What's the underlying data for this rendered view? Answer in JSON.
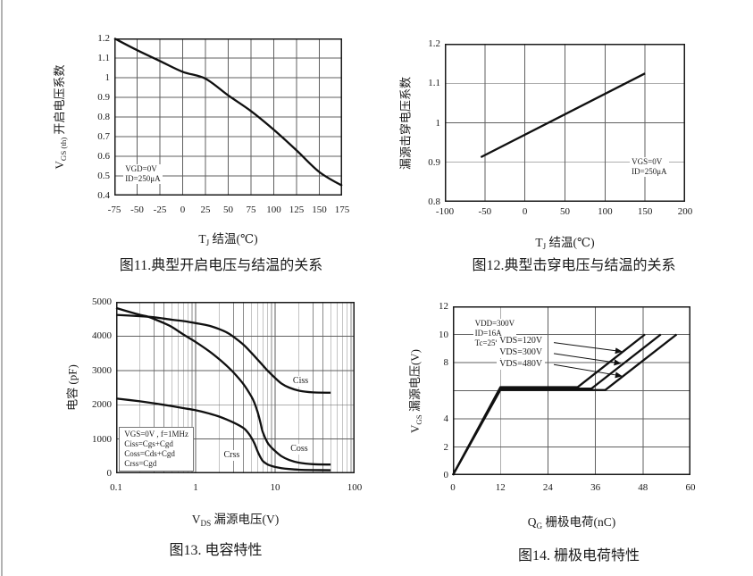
{
  "page": {
    "edge_line_color": "#b3b3b3",
    "background": "#ffffff",
    "ink_color": "#1a1a1a"
  },
  "chart_data": [
    {
      "name": "fig11",
      "type": "line",
      "caption": "图11.典型开启电压与结温的关系",
      "xlabel_parts": [
        {
          "t": "T"
        },
        {
          "t": "J",
          "sub": true
        },
        {
          "t": " 结温(℃)"
        }
      ],
      "ylabel_parts": [
        {
          "t": "V"
        },
        {
          "t": "GS (th)",
          "sub": true
        },
        {
          "t": " 开启电压系数"
        }
      ],
      "x_scale": "linear",
      "x_range": [
        -75,
        175
      ],
      "y_range": [
        0.4,
        1.2
      ],
      "grid": true,
      "x_ticks": [
        {
          "v": -75,
          "label": "-75"
        },
        {
          "v": -50,
          "label": "-50"
        },
        {
          "v": -25,
          "label": "-25"
        },
        {
          "v": 0,
          "label": "0"
        },
        {
          "v": 25,
          "label": "25"
        },
        {
          "v": 50,
          "label": "50"
        },
        {
          "v": 75,
          "label": "75"
        },
        {
          "v": 100,
          "label": "100"
        },
        {
          "v": 125,
          "label": "125"
        },
        {
          "v": 150,
          "label": "150"
        },
        {
          "v": 175,
          "label": "175"
        }
      ],
      "y_ticks": [
        {
          "v": 0.4,
          "label": "0.4"
        },
        {
          "v": 0.5,
          "label": "0.5"
        },
        {
          "v": 0.6,
          "label": "0.6"
        },
        {
          "v": 0.7,
          "label": "0.7"
        },
        {
          "v": 0.8,
          "label": "0.8"
        },
        {
          "v": 0.9,
          "label": "0.9"
        },
        {
          "v": 1,
          "label": "1"
        },
        {
          "v": 1.1,
          "label": "1.1"
        },
        {
          "v": 1.2,
          "label": "1.2"
        }
      ],
      "series": [
        {
          "name": "vgs-th-coefficient-curve",
          "smooth": true,
          "points": [
            [
              -75,
              1.2
            ],
            [
              -50,
              1.14
            ],
            [
              -25,
              1.085
            ],
            [
              0,
              1.03
            ],
            [
              25,
              0.995
            ],
            [
              50,
              0.91
            ],
            [
              75,
              0.83
            ],
            [
              100,
              0.735
            ],
            [
              125,
              0.63
            ],
            [
              150,
              0.52
            ],
            [
              175,
              0.45
            ]
          ]
        }
      ],
      "annotations": [
        {
          "lines": [
            "VGD=0V",
            "ID=250μA"
          ],
          "fx": 0.04,
          "fy": 0.8,
          "boxed": false
        }
      ],
      "series_labels": [],
      "arrows": []
    },
    {
      "name": "fig12",
      "type": "line",
      "caption": "图12.典型击穿电压与结温的关系",
      "xlabel_parts": [
        {
          "t": "T"
        },
        {
          "t": "J",
          "sub": true
        },
        {
          "t": " 结温(℃)"
        }
      ],
      "ylabel_parts": [
        {
          "t": "漏源击穿电压系数"
        }
      ],
      "x_scale": "linear",
      "x_range": [
        -100,
        200
      ],
      "y_range": [
        0.8,
        1.2
      ],
      "grid": true,
      "x_ticks": [
        {
          "v": -100,
          "label": "-100"
        },
        {
          "v": -50,
          "label": "-50"
        },
        {
          "v": 0,
          "label": "0"
        },
        {
          "v": 50,
          "label": "50"
        },
        {
          "v": 100,
          "label": "100"
        },
        {
          "v": 150,
          "label": "150"
        },
        {
          "v": 200,
          "label": "200"
        }
      ],
      "y_ticks": [
        {
          "v": 0.8,
          "label": "0.8"
        },
        {
          "v": 0.9,
          "label": "0.9"
        },
        {
          "v": 1,
          "label": "1"
        },
        {
          "v": 1.1,
          "label": "1.1"
        },
        {
          "v": 1.2,
          "label": "1.2"
        }
      ],
      "series": [
        {
          "name": "bvdss-coefficient-line",
          "smooth": false,
          "points": [
            [
              -55,
              0.913
            ],
            [
              150,
              1.125
            ]
          ]
        }
      ],
      "annotations": [
        {
          "lines": [
            "VGS=0V",
            "ID=250μA"
          ],
          "fx": 0.77,
          "fy": 0.72,
          "boxed": false
        }
      ],
      "series_labels": [],
      "arrows": []
    },
    {
      "name": "fig13",
      "type": "line",
      "caption": "图13. 电容特性",
      "xlabel_parts": [
        {
          "t": "V"
        },
        {
          "t": "DS",
          "sub": true
        },
        {
          "t": " 漏源电压(V)"
        }
      ],
      "ylabel_parts": [
        {
          "t": "电容 (pF)"
        }
      ],
      "x_scale": "log",
      "x_range": [
        0.1,
        100
      ],
      "y_range": [
        0,
        5000
      ],
      "grid": true,
      "x_ticks": [
        {
          "v": 0.1,
          "label": "0.1"
        },
        {
          "v": 1,
          "label": "1"
        },
        {
          "v": 10,
          "label": "10"
        },
        {
          "v": 100,
          "label": "100"
        }
      ],
      "y_ticks": [
        {
          "v": 0,
          "label": "0"
        },
        {
          "v": 1000,
          "label": "1000"
        },
        {
          "v": 2000,
          "label": "2000"
        },
        {
          "v": 3000,
          "label": "3000"
        },
        {
          "v": 4000,
          "label": "4000"
        },
        {
          "v": 5000,
          "label": "5000"
        }
      ],
      "series": [
        {
          "name": "ciss-curve",
          "smooth": true,
          "points": [
            [
              0.1,
              4620
            ],
            [
              0.2,
              4580
            ],
            [
              0.3,
              4550
            ],
            [
              0.5,
              4480
            ],
            [
              0.7,
              4440
            ],
            [
              1,
              4380
            ],
            [
              1.5,
              4300
            ],
            [
              2,
              4200
            ],
            [
              2.5,
              4100
            ],
            [
              3,
              3980
            ],
            [
              4,
              3750
            ],
            [
              5,
              3520
            ],
            [
              6,
              3320
            ],
            [
              7,
              3150
            ],
            [
              8,
              3000
            ],
            [
              10,
              2780
            ],
            [
              12,
              2620
            ],
            [
              15,
              2500
            ],
            [
              20,
              2410
            ],
            [
              30,
              2360
            ],
            [
              50,
              2350
            ]
          ]
        },
        {
          "name": "coss-curve",
          "smooth": true,
          "points": [
            [
              0.1,
              4820
            ],
            [
              0.15,
              4700
            ],
            [
              0.2,
              4620
            ],
            [
              0.25,
              4570
            ],
            [
              0.3,
              4500
            ],
            [
              0.4,
              4380
            ],
            [
              0.5,
              4270
            ],
            [
              0.7,
              4050
            ],
            [
              1,
              3830
            ],
            [
              1.5,
              3550
            ],
            [
              2,
              3320
            ],
            [
              2.5,
              3120
            ],
            [
              3,
              2940
            ],
            [
              4,
              2600
            ],
            [
              5,
              2250
            ],
            [
              5.5,
              2050
            ],
            [
              6,
              1800
            ],
            [
              6.5,
              1500
            ],
            [
              7,
              1200
            ],
            [
              8,
              900
            ],
            [
              9,
              750
            ],
            [
              10,
              650
            ],
            [
              12,
              500
            ],
            [
              15,
              390
            ],
            [
              20,
              310
            ],
            [
              30,
              265
            ],
            [
              50,
              255
            ]
          ]
        },
        {
          "name": "crss-curve",
          "smooth": true,
          "points": [
            [
              0.1,
              2180
            ],
            [
              0.2,
              2100
            ],
            [
              0.3,
              2040
            ],
            [
              0.5,
              1960
            ],
            [
              0.7,
              1900
            ],
            [
              1,
              1840
            ],
            [
              1.5,
              1740
            ],
            [
              2,
              1650
            ],
            [
              3,
              1480
            ],
            [
              4,
              1320
            ],
            [
              4.5,
              1200
            ],
            [
              5,
              1050
            ],
            [
              5.5,
              870
            ],
            [
              6,
              650
            ],
            [
              6.5,
              480
            ],
            [
              7,
              360
            ],
            [
              8,
              260
            ],
            [
              9,
              215
            ],
            [
              10,
              185
            ],
            [
              12,
              150
            ],
            [
              15,
              125
            ],
            [
              20,
              105
            ],
            [
              30,
              95
            ],
            [
              50,
              90
            ]
          ]
        }
      ],
      "annotations": [
        {
          "lines": [
            "VGS=0V , f=1MHz",
            "Ciss=Cgs+Cgd",
            "Coss=Cds+Cgd",
            "Crss=Cgd"
          ],
          "fx": 0.012,
          "fy": 0.73,
          "boxed": true
        }
      ],
      "series_labels": [
        {
          "text": "Ciss",
          "fx": 0.73,
          "fy": 0.43
        },
        {
          "text": "Coss",
          "fx": 0.72,
          "fy": 0.83
        },
        {
          "text": "Crss",
          "fx": 0.44,
          "fy": 0.865
        }
      ],
      "arrows": []
    },
    {
      "name": "fig14",
      "type": "line",
      "caption": "图14. 栅极电荷特性",
      "xlabel_parts": [
        {
          "t": "Q"
        },
        {
          "t": "G",
          "sub": true
        },
        {
          "t": " 栅极电荷(nC)"
        }
      ],
      "ylabel_parts": [
        {
          "t": "V"
        },
        {
          "t": "GS",
          "sub": true
        },
        {
          "t": " 漏源电压(V)"
        }
      ],
      "x_scale": "linear",
      "x_range": [
        0,
        60
      ],
      "y_range": [
        0,
        12
      ],
      "grid": true,
      "x_ticks": [
        {
          "v": 0,
          "label": "0"
        },
        {
          "v": 12,
          "label": "12"
        },
        {
          "v": 24,
          "label": "24"
        },
        {
          "v": 36,
          "label": "36"
        },
        {
          "v": 48,
          "label": "48"
        },
        {
          "v": 60,
          "label": "60"
        }
      ],
      "y_ticks": [
        {
          "v": 0,
          "label": "0"
        },
        {
          "v": 2,
          "label": "2"
        },
        {
          "v": 4,
          "label": "4"
        },
        {
          "v": 6,
          "label": ""
        },
        {
          "v": 8,
          "label": "8"
        },
        {
          "v": 10,
          "label": "10"
        },
        {
          "v": 12,
          "label": "12"
        }
      ],
      "series": [
        {
          "name": "vds-120v-curve",
          "smooth": false,
          "points": [
            [
              0,
              0
            ],
            [
              12,
              6.25
            ],
            [
              31.5,
              6.25
            ],
            [
              48.5,
              10
            ]
          ]
        },
        {
          "name": "vds-300v-curve",
          "smooth": false,
          "points": [
            [
              0,
              0
            ],
            [
              12,
              6.15
            ],
            [
              35,
              6.15
            ],
            [
              52.5,
              10
            ]
          ]
        },
        {
          "name": "vds-480v-curve",
          "smooth": false,
          "points": [
            [
              0,
              0
            ],
            [
              12,
              6.05
            ],
            [
              38.5,
              6.05
            ],
            [
              56.5,
              10
            ]
          ]
        }
      ],
      "annotations": [
        {
          "lines": [
            "VDD=300V",
            "ID=16A",
            "Tc=25℃"
          ],
          "fx": 0.085,
          "fy": 0.075,
          "boxed": false
        }
      ],
      "series_labels": [
        {
          "text": "VDS=120V",
          "fx": 0.185,
          "fy": 0.175
        },
        {
          "text": "VDS=300V",
          "fx": 0.185,
          "fy": 0.242
        },
        {
          "text": "VDS=480V",
          "fx": 0.185,
          "fy": 0.31
        }
      ],
      "arrows": [
        {
          "x1f": 0.425,
          "y1f": 0.215,
          "x2f": 0.71,
          "y2f": 0.268
        },
        {
          "x1f": 0.425,
          "y1f": 0.28,
          "x2f": 0.705,
          "y2f": 0.338
        },
        {
          "x1f": 0.425,
          "y1f": 0.345,
          "x2f": 0.71,
          "y2f": 0.413
        }
      ]
    }
  ]
}
